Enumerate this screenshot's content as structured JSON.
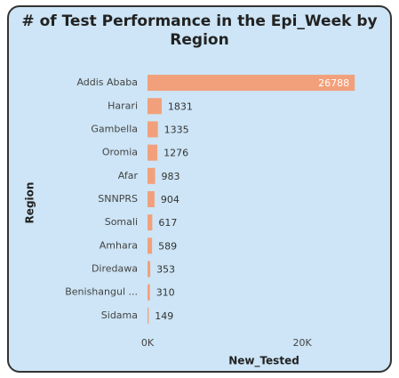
{
  "chart_data": {
    "type": "bar",
    "orientation": "horizontal",
    "title": "# of Test Performance in the Epi_Week by Region",
    "x_label": "New_Tested",
    "y_label": "Region",
    "categories": [
      "Addis Ababa",
      "Harari",
      "Gambella",
      "Oromia",
      "Afar",
      "SNNPRS",
      "Somali",
      "Amhara",
      "Diredawa",
      "Benishangul ...",
      "Sidama"
    ],
    "values": [
      26788,
      1831,
      1335,
      1276,
      983,
      904,
      617,
      589,
      353,
      310,
      149
    ],
    "color": "#f2a07b",
    "xlim": [
      0,
      27000
    ],
    "xticks": [
      {
        "value": 0,
        "label": "0K"
      },
      {
        "value": 20000,
        "label": "20K"
      }
    ]
  }
}
